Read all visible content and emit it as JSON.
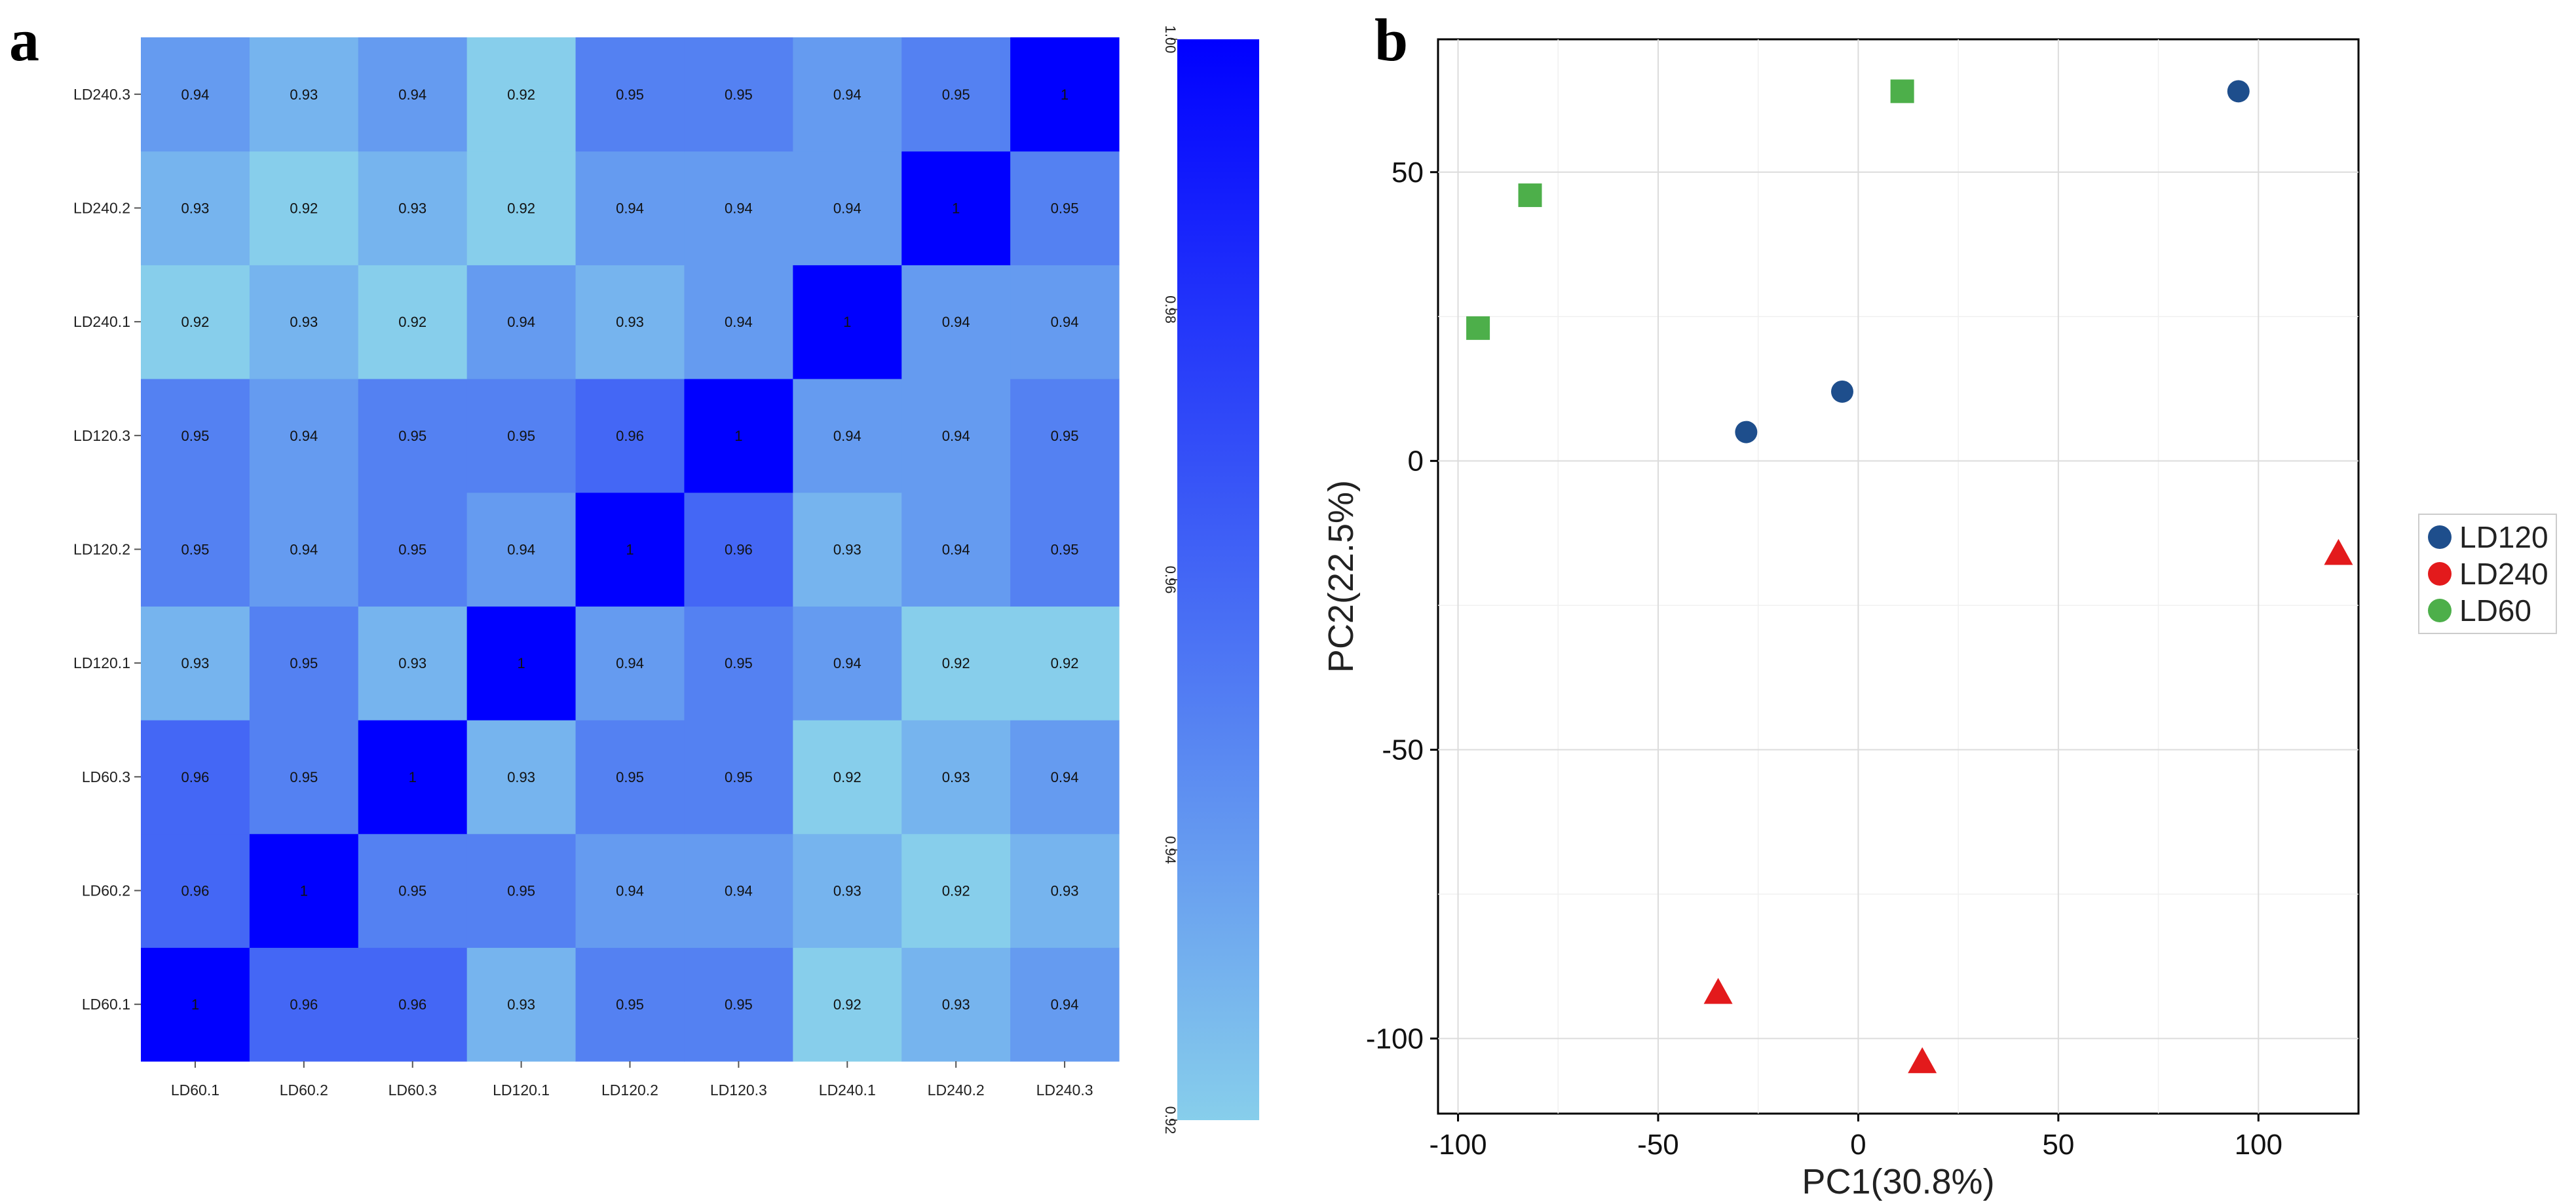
{
  "chart_data": [
    {
      "panel": "a",
      "type": "heatmap",
      "title": "",
      "x_categories": [
        "LD60.1",
        "LD60.2",
        "LD60.3",
        "LD120.1",
        "LD120.2",
        "LD120.3",
        "LD240.1",
        "LD240.2",
        "LD240.3"
      ],
      "y_categories": [
        "LD60.1",
        "LD60.2",
        "LD60.3",
        "LD120.1",
        "LD120.2",
        "LD120.3",
        "LD240.1",
        "LD240.2",
        "LD240.3"
      ],
      "values": [
        [
          "1",
          "0.96",
          "0.96",
          "0.93",
          "0.95",
          "0.95",
          "0.92",
          "0.93",
          "0.94"
        ],
        [
          "0.96",
          "1",
          "0.95",
          "0.95",
          "0.94",
          "0.94",
          "0.93",
          "0.92",
          "0.93"
        ],
        [
          "0.96",
          "0.95",
          "1",
          "0.93",
          "0.95",
          "0.95",
          "0.92",
          "0.93",
          "0.94"
        ],
        [
          "0.93",
          "0.95",
          "0.93",
          "1",
          "0.94",
          "0.95",
          "0.94",
          "0.92",
          "0.92"
        ],
        [
          "0.95",
          "0.94",
          "0.95",
          "0.94",
          "1",
          "0.96",
          "0.93",
          "0.94",
          "0.95"
        ],
        [
          "0.95",
          "0.94",
          "0.95",
          "0.95",
          "0.96",
          "1",
          "0.94",
          "0.94",
          "0.95"
        ],
        [
          "0.92",
          "0.93",
          "0.92",
          "0.94",
          "0.93",
          "0.94",
          "1",
          "0.94",
          "0.94"
        ],
        [
          "0.93",
          "0.92",
          "0.93",
          "0.92",
          "0.94",
          "0.94",
          "0.94",
          "1",
          "0.95"
        ],
        [
          "0.94",
          "0.93",
          "0.94",
          "0.92",
          "0.95",
          "0.95",
          "0.94",
          "0.95",
          "1"
        ]
      ],
      "colorbar": {
        "min": 0.92,
        "max": 1.0,
        "ticks": [
          "0.92",
          "0.94",
          "0.96",
          "0.98",
          "1.00"
        ],
        "low_color": "#87CEEB",
        "high_color": "#0000FF"
      }
    },
    {
      "panel": "b",
      "type": "scatter",
      "title": "",
      "xlabel": "PC1(30.8%)",
      "ylabel": "PC2(22.5%)",
      "xlim": [
        -105,
        125
      ],
      "ylim": [
        -113,
        73
      ],
      "x_ticks": [
        "-100",
        "-50",
        "0",
        "50",
        "100"
      ],
      "y_ticks": [
        "-100",
        "-50",
        "0",
        "50"
      ],
      "grid": true,
      "legend_position": "right",
      "series": [
        {
          "name": "LD120",
          "marker": "circle",
          "color": "#1E4E8C",
          "points": [
            {
              "x": -28,
              "y": 5
            },
            {
              "x": -4,
              "y": 12
            },
            {
              "x": 95,
              "y": 64
            }
          ]
        },
        {
          "name": "LD240",
          "marker": "triangle",
          "color": "#E31A1C",
          "points": [
            {
              "x": -35,
              "y": -92
            },
            {
              "x": 16,
              "y": -104
            },
            {
              "x": 120,
              "y": -16
            }
          ]
        },
        {
          "name": "LD60",
          "marker": "square",
          "color": "#4DAF4A",
          "points": [
            {
              "x": -95,
              "y": 23
            },
            {
              "x": -82,
              "y": 46
            },
            {
              "x": 11,
              "y": 64
            }
          ]
        }
      ]
    }
  ]
}
